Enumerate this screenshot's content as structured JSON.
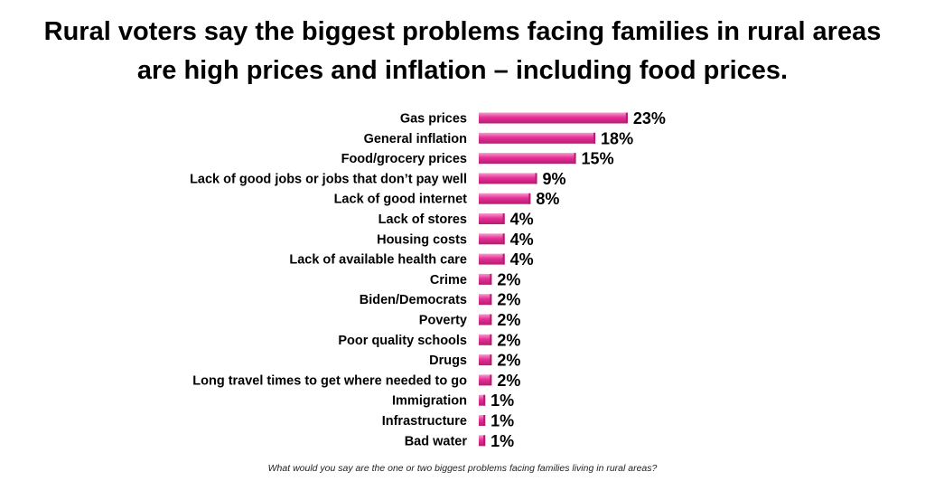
{
  "chart_data": {
    "type": "bar",
    "orientation": "horizontal",
    "title": "Rural voters say the biggest problems facing families in rural areas",
    "subtitle": "are high prices and inflation – including food prices.",
    "footnote": "What would you say are the one or two biggest problems facing families living in rural areas?",
    "categories": [
      "Gas prices",
      "General inflation",
      "Food/grocery prices",
      "Lack of good jobs or jobs that don’t pay well",
      "Lack of good internet",
      "Lack of stores",
      "Housing costs",
      "Lack of available health care",
      "Crime",
      "Biden/Democrats",
      "Poverty",
      "Poor quality schools",
      "Drugs",
      "Long travel times to get where needed to go",
      "Immigration",
      "Infrastructure",
      "Bad water"
    ],
    "values": [
      23,
      18,
      15,
      9,
      8,
      4,
      4,
      4,
      2,
      2,
      2,
      2,
      2,
      2,
      1,
      1,
      1
    ],
    "value_labels": [
      "23%",
      "18%",
      "15%",
      "9%",
      "8%",
      "4%",
      "4%",
      "4%",
      "2%",
      "2%",
      "2%",
      "2%",
      "2%",
      "2%",
      "1%",
      "1%",
      "1%"
    ],
    "unit": "%",
    "grid": false,
    "legend": "none",
    "bar_color": "#e62f97",
    "bar_highlight": "#f59ccd",
    "bar_shadow": "#b51c70"
  }
}
